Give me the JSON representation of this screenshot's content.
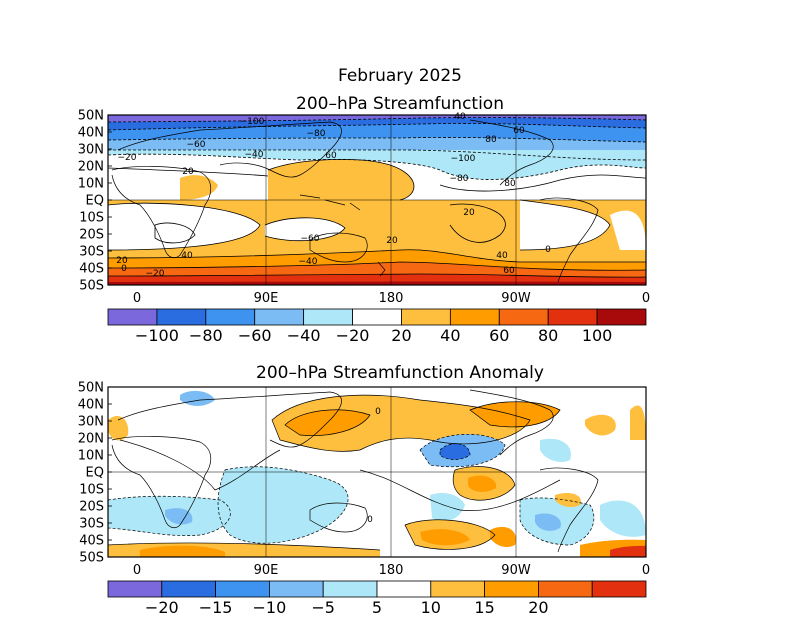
{
  "title": "February 2025",
  "panels": [
    {
      "title": "200–hPa Streamfunction",
      "lat_labels": [
        "50N",
        "40N",
        "30N",
        "20N",
        "10N",
        "EQ",
        "10S",
        "20S",
        "30S",
        "40S",
        "50S"
      ],
      "lon_labels": [
        "0",
        "90E",
        "180",
        "90W",
        "0"
      ],
      "colorbar": {
        "colors": [
          "#7b68dc",
          "#2a6de0",
          "#3f93f0",
          "#7cbcf5",
          "#aee8f8",
          "#ffffff",
          "#ffbf3e",
          "#ff9c00",
          "#f76812",
          "#e33110",
          "#a8090a"
        ],
        "labels": [
          "−100",
          "−80",
          "−60",
          "−40",
          "−20",
          "20",
          "40",
          "60",
          "80",
          "100"
        ]
      },
      "contour_labels": [
        "−100",
        "−80",
        "−60",
        "−40",
        "−20",
        "20",
        "40",
        "60",
        "80",
        "−100",
        "−80",
        "−60",
        "−40",
        "−20",
        "0",
        "20",
        "40",
        "60",
        "80",
        "20",
        "0",
        "20",
        "40",
        "60"
      ]
    },
    {
      "title": "200–hPa Streamfunction Anomaly",
      "lat_labels": [
        "50N",
        "40N",
        "30N",
        "20N",
        "10N",
        "EQ",
        "10S",
        "20S",
        "30S",
        "40S",
        "50S"
      ],
      "lon_labels": [
        "0",
        "90E",
        "180",
        "90W",
        "0"
      ],
      "colorbar": {
        "colors": [
          "#7b68dc",
          "#2a6de0",
          "#3f93f0",
          "#7cbcf5",
          "#aee8f8",
          "#ffffff",
          "#ffbf3e",
          "#ff9c00",
          "#f76812",
          "#e33110"
        ],
        "labels": [
          "−20",
          "−15",
          "−10",
          "−5",
          "5",
          "10",
          "15",
          "20"
        ]
      },
      "contour_labels": [
        "0",
        "0"
      ]
    }
  ]
}
